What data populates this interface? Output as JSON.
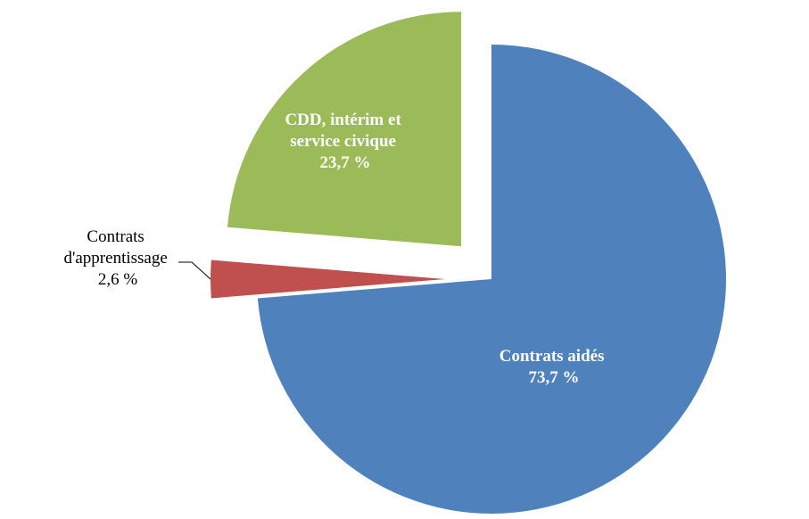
{
  "chart_data": {
    "type": "pie",
    "title": "",
    "legend": "none",
    "slices": [
      {
        "label_lines": [
          "Contrats aidés"
        ],
        "value": 73.7,
        "value_label": "73,7 %",
        "color": "#4f81bd",
        "label_color": "#ffffff",
        "label_style": "bold",
        "label_position": "inside"
      },
      {
        "label_lines": [
          "Contrats",
          "d'apprentissage"
        ],
        "value": 2.6,
        "value_label": "2,6 %",
        "color": "#c0504d",
        "label_color": "#000000",
        "label_style": "normal",
        "label_position": "outside-left"
      },
      {
        "label_lines": [
          "CDD, intérim et",
          "service civique"
        ],
        "value": 23.7,
        "value_label": "23,7 %",
        "color": "#9bbb59",
        "label_color": "#ffffff",
        "label_style": "bold",
        "label_position": "inside"
      }
    ]
  }
}
